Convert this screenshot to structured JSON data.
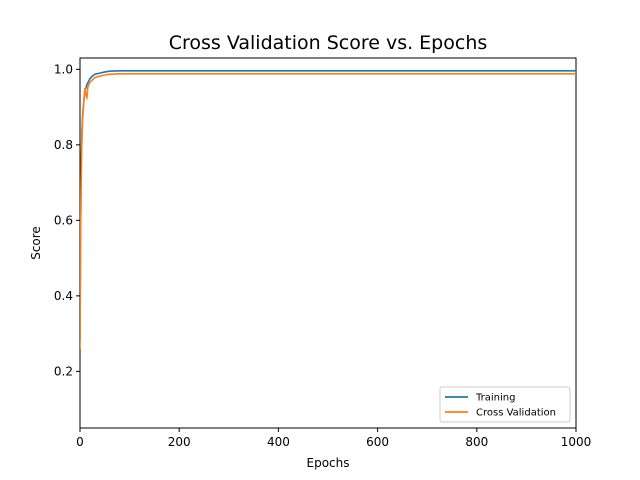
{
  "chart_data": {
    "type": "line",
    "title": "Cross Validation Score vs. Epochs",
    "xlabel": "Epochs",
    "ylabel": "Score",
    "xlim": [
      0,
      1000
    ],
    "ylim": [
      0.05,
      1.03
    ],
    "xticks": [
      0,
      200,
      400,
      600,
      800,
      1000
    ],
    "yticks": [
      0.2,
      0.4,
      0.6,
      0.8,
      1.0
    ],
    "xtick_labels": [
      "0",
      "200",
      "400",
      "600",
      "800",
      "1000"
    ],
    "ytick_labels": [
      "0.2",
      "0.4",
      "0.6",
      "0.8",
      "1.0"
    ],
    "grid": false,
    "legend_position": "bottom-right",
    "series": [
      {
        "name": "Training",
        "color": "#1f77b4",
        "x": [
          0,
          1,
          2,
          3,
          4,
          5,
          6,
          8,
          10,
          12,
          14,
          16,
          18,
          20,
          25,
          30,
          40,
          50,
          60,
          80,
          100,
          150,
          200,
          300,
          400,
          500,
          600,
          700,
          800,
          900,
          1000
        ],
        "y": [
          0.28,
          0.55,
          0.68,
          0.78,
          0.84,
          0.87,
          0.89,
          0.92,
          0.945,
          0.95,
          0.96,
          0.965,
          0.97,
          0.975,
          0.982,
          0.987,
          0.99,
          0.993,
          0.995,
          0.996,
          0.996,
          0.996,
          0.996,
          0.996,
          0.996,
          0.996,
          0.996,
          0.996,
          0.996,
          0.996,
          0.996
        ]
      },
      {
        "name": "Cross Validation",
        "color": "#ff7f0e",
        "x": [
          0,
          1,
          2,
          3,
          4,
          5,
          6,
          8,
          10,
          12,
          14,
          16,
          18,
          20,
          25,
          30,
          40,
          50,
          60,
          80,
          100,
          150,
          200,
          300,
          400,
          500,
          600,
          700,
          800,
          900,
          1000
        ],
        "y": [
          0.26,
          0.52,
          0.66,
          0.76,
          0.82,
          0.86,
          0.88,
          0.92,
          0.95,
          0.93,
          0.925,
          0.955,
          0.96,
          0.965,
          0.972,
          0.978,
          0.982,
          0.985,
          0.987,
          0.988,
          0.988,
          0.988,
          0.988,
          0.988,
          0.988,
          0.988,
          0.988,
          0.988,
          0.988,
          0.988,
          0.988
        ]
      }
    ]
  }
}
